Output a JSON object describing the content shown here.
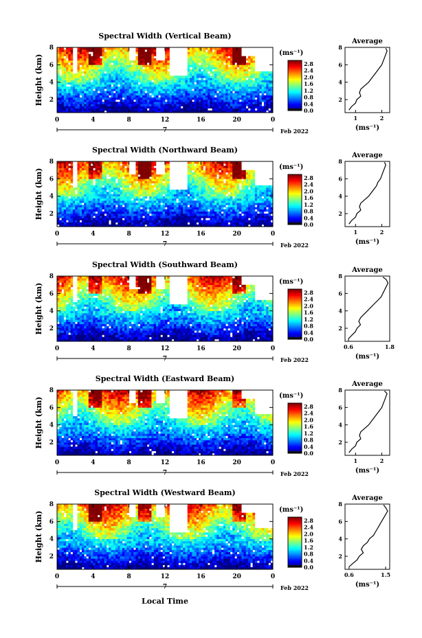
{
  "figure": {
    "shared_date_label": "Feb 2022",
    "shared_day_label": "7",
    "xlabel": "Local Time",
    "colorbar_unit": "(ms⁻¹)",
    "average_title": "Average",
    "average_xlabel": "(ms⁻¹)"
  },
  "chart_data": [
    {
      "type": "heatmap",
      "title": "Spectral Width (Vertical Beam)",
      "ylabel": "Height (km)",
      "x_ticks": [
        "0",
        "4",
        "8",
        "12",
        "16",
        "20",
        "0"
      ],
      "y_ticks": [
        "2",
        "4",
        "6",
        "8"
      ],
      "xlim": [
        0,
        24
      ],
      "ylim": [
        0.5,
        8
      ],
      "colorbar_ticks": [
        "0.0",
        "0.4",
        "0.8",
        "1.2",
        "1.6",
        "2.0",
        "2.4",
        "2.8"
      ],
      "colorbar_range": [
        0,
        3
      ],
      "average_profile": {
        "type": "line",
        "xlim": [
          0.6,
          2.3
        ],
        "x_ticks": [
          "1",
          "2"
        ],
        "ylim": [
          0.5,
          8
        ],
        "y_ticks": [
          "2",
          "4",
          "6",
          "8"
        ],
        "heights": [
          0.8,
          1.2,
          1.6,
          2.0,
          2.4,
          2.8,
          3.2,
          3.6,
          4.0,
          4.4,
          4.8,
          5.2,
          5.6,
          6.0,
          6.4,
          6.8,
          7.2,
          7.6,
          7.9
        ],
        "values": [
          0.75,
          0.85,
          1.0,
          1.05,
          1.2,
          1.15,
          1.2,
          1.35,
          1.5,
          1.6,
          1.7,
          1.8,
          1.9,
          2.0,
          2.05,
          2.1,
          2.15,
          2.2,
          2.15
        ]
      }
    },
    {
      "type": "heatmap",
      "title": "Spectral Width (Northward Beam)",
      "ylabel": "Height (km)",
      "x_ticks": [
        "0",
        "4",
        "8",
        "12",
        "16",
        "20",
        "0"
      ],
      "y_ticks": [
        "2",
        "4",
        "6",
        "8"
      ],
      "xlim": [
        0,
        24
      ],
      "ylim": [
        0.5,
        8
      ],
      "colorbar_ticks": [
        "0.0",
        "0.4",
        "0.8",
        "1.2",
        "1.6",
        "2.0",
        "2.4",
        "2.8"
      ],
      "colorbar_range": [
        0,
        3
      ],
      "average_profile": {
        "type": "line",
        "xlim": [
          0.6,
          2.3
        ],
        "x_ticks": [
          "1",
          "2"
        ],
        "ylim": [
          0.5,
          8
        ],
        "y_ticks": [
          "2",
          "4",
          "6",
          "8"
        ],
        "heights": [
          0.8,
          1.2,
          1.6,
          2.0,
          2.4,
          2.8,
          3.2,
          3.6,
          4.0,
          4.4,
          4.8,
          5.2,
          5.6,
          6.0,
          6.4,
          6.8,
          7.2,
          7.6,
          7.9
        ],
        "values": [
          0.75,
          0.85,
          1.0,
          1.05,
          1.2,
          1.15,
          1.2,
          1.35,
          1.5,
          1.6,
          1.7,
          1.8,
          1.85,
          1.95,
          2.0,
          2.05,
          2.1,
          2.15,
          2.1
        ]
      }
    },
    {
      "type": "heatmap",
      "title": "Spectral Width (Southward Beam)",
      "ylabel": "Height (km)",
      "x_ticks": [
        "0",
        "4",
        "8",
        "12",
        "16",
        "20",
        "0"
      ],
      "y_ticks": [
        "2",
        "4",
        "6",
        "8"
      ],
      "xlim": [
        0,
        24
      ],
      "ylim": [
        0.5,
        8
      ],
      "colorbar_ticks": [
        "0.0",
        "0.4",
        "0.8",
        "1.2",
        "1.6",
        "2.0",
        "2.4",
        "2.8"
      ],
      "colorbar_range": [
        0,
        3
      ],
      "average_profile": {
        "type": "line",
        "xlim": [
          0.5,
          1.8
        ],
        "x_ticks": [
          "0.6",
          "1.8"
        ],
        "ylim": [
          0.5,
          8
        ],
        "y_ticks": [
          "2",
          "4",
          "6",
          "8"
        ],
        "heights": [
          0.8,
          1.2,
          1.6,
          2.0,
          2.4,
          2.8,
          3.2,
          3.6,
          4.0,
          4.4,
          4.8,
          5.2,
          5.6,
          6.0,
          6.4,
          6.8,
          7.2,
          7.6,
          7.9
        ],
        "values": [
          0.6,
          0.7,
          0.8,
          0.85,
          0.95,
          0.9,
          0.95,
          1.05,
          1.15,
          1.25,
          1.35,
          1.45,
          1.55,
          1.6,
          1.65,
          1.7,
          1.75,
          1.7,
          1.6
        ]
      }
    },
    {
      "type": "heatmap",
      "title": "Spectral Width (Eastward Beam)",
      "ylabel": "Height (km)",
      "x_ticks": [
        "0",
        "4",
        "8",
        "12",
        "16",
        "20",
        "0"
      ],
      "y_ticks": [
        "2",
        "4",
        "6",
        "8"
      ],
      "xlim": [
        0,
        24
      ],
      "ylim": [
        0.5,
        8
      ],
      "colorbar_ticks": [
        "0.0",
        "0.4",
        "0.8",
        "1.2",
        "1.6",
        "2.0",
        "2.4",
        "2.8"
      ],
      "colorbar_range": [
        0,
        3
      ],
      "average_profile": {
        "type": "line",
        "xlim": [
          0.6,
          2.3
        ],
        "x_ticks": [
          "1",
          "2"
        ],
        "ylim": [
          0.5,
          8
        ],
        "y_ticks": [
          "2",
          "4",
          "6",
          "8"
        ],
        "heights": [
          0.8,
          1.2,
          1.6,
          2.0,
          2.4,
          2.8,
          3.2,
          3.6,
          4.0,
          4.4,
          4.8,
          5.2,
          5.6,
          6.0,
          6.4,
          6.8,
          7.2,
          7.6,
          7.9
        ],
        "values": [
          0.75,
          0.85,
          1.0,
          1.05,
          1.2,
          1.15,
          1.2,
          1.35,
          1.5,
          1.6,
          1.7,
          1.8,
          1.9,
          2.0,
          2.05,
          2.1,
          2.15,
          2.2,
          2.1
        ]
      }
    },
    {
      "type": "heatmap",
      "title": "Spectral Width (Westward Beam)",
      "ylabel": "Height (km)",
      "x_ticks": [
        "0",
        "4",
        "8",
        "12",
        "16",
        "20",
        "0"
      ],
      "y_ticks": [
        "2",
        "4",
        "6",
        "8"
      ],
      "xlim": [
        0,
        24
      ],
      "ylim": [
        0.5,
        8
      ],
      "colorbar_ticks": [
        "0.0",
        "0.4",
        "0.8",
        "1.2",
        "1.6",
        "2.0",
        "2.4",
        "2.8"
      ],
      "colorbar_range": [
        0,
        3
      ],
      "average_profile": {
        "type": "line",
        "xlim": [
          0.5,
          1.6
        ],
        "x_ticks": [
          "0.6",
          "1.5"
        ],
        "ylim": [
          0.5,
          8
        ],
        "y_ticks": [
          "2",
          "4",
          "6",
          "8"
        ],
        "heights": [
          0.8,
          1.2,
          1.6,
          2.0,
          2.4,
          2.8,
          3.2,
          3.6,
          4.0,
          4.4,
          4.8,
          5.2,
          5.6,
          6.0,
          6.4,
          6.8,
          7.2,
          7.6,
          7.9
        ],
        "values": [
          0.6,
          0.7,
          0.8,
          0.85,
          0.95,
          0.9,
          0.95,
          1.05,
          1.1,
          1.2,
          1.25,
          1.3,
          1.35,
          1.4,
          1.45,
          1.5,
          1.55,
          1.5,
          1.45
        ]
      }
    }
  ]
}
